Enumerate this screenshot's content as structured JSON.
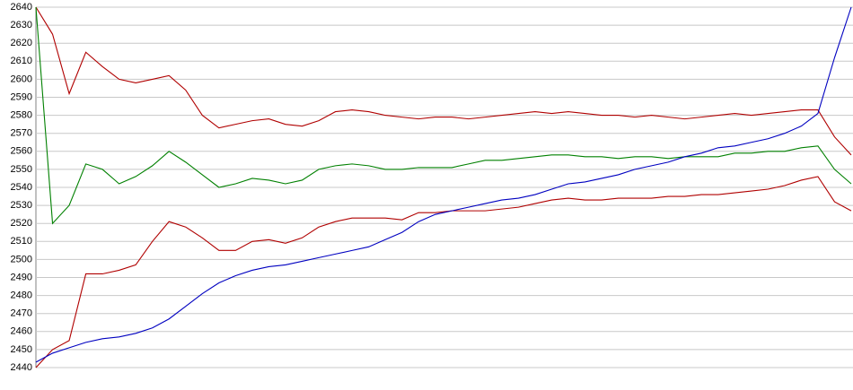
{
  "chart_data": {
    "type": "line",
    "series": [
      {
        "color": "#b00000",
        "values": [
          2640,
          2625,
          2592,
          2615,
          2607,
          2600,
          2598,
          2600,
          2602,
          2594,
          2580,
          2573,
          2575,
          2577,
          2578,
          2575,
          2574,
          2577,
          2582,
          2583,
          2582,
          2580,
          2579,
          2578,
          2579,
          2579,
          2578,
          2579,
          2580,
          2581,
          2582,
          2581,
          2582,
          2581,
          2580,
          2580,
          2579,
          2580,
          2579,
          2578,
          2579,
          2580,
          2581,
          2580,
          2581,
          2582,
          2583,
          2583,
          2568,
          2558
        ]
      },
      {
        "color": "#008000",
        "values": [
          2640,
          2520,
          2530,
          2553,
          2550,
          2542,
          2546,
          2552,
          2560,
          2554,
          2547,
          2540,
          2542,
          2545,
          2544,
          2542,
          2544,
          2550,
          2552,
          2553,
          2552,
          2550,
          2550,
          2551,
          2551,
          2551,
          2553,
          2555,
          2555,
          2556,
          2557,
          2558,
          2558,
          2557,
          2557,
          2556,
          2557,
          2557,
          2556,
          2557,
          2557,
          2557,
          2559,
          2559,
          2560,
          2560,
          2562,
          2563,
          2550,
          2542
        ]
      },
      {
        "color": "#b00000",
        "values": [
          2440,
          2450,
          2455,
          2492,
          2492,
          2494,
          2497,
          2510,
          2521,
          2518,
          2512,
          2505,
          2505,
          2510,
          2511,
          2509,
          2512,
          2518,
          2521,
          2523,
          2523,
          2523,
          2522,
          2526,
          2526,
          2527,
          2527,
          2527,
          2528,
          2529,
          2531,
          2533,
          2534,
          2533,
          2533,
          2534,
          2534,
          2534,
          2535,
          2535,
          2536,
          2536,
          2537,
          2538,
          2539,
          2541,
          2544,
          2546,
          2532,
          2527
        ]
      },
      {
        "color": "#0000c0",
        "values": [
          2443,
          2448,
          2451,
          2454,
          2456,
          2457,
          2459,
          2462,
          2467,
          2474,
          2481,
          2487,
          2491,
          2494,
          2496,
          2497,
          2499,
          2501,
          2503,
          2505,
          2507,
          2511,
          2515,
          2521,
          2525,
          2527,
          2529,
          2531,
          2533,
          2534,
          2536,
          2539,
          2542,
          2543,
          2545,
          2547,
          2550,
          2552,
          2554,
          2557,
          2559,
          2562,
          2563,
          2565,
          2567,
          2570,
          2574,
          2581,
          2612,
          2640
        ]
      }
    ],
    "ylim": [
      2440,
      2640
    ],
    "yticks": [
      2440,
      2450,
      2460,
      2470,
      2480,
      2490,
      2500,
      2510,
      2520,
      2530,
      2540,
      2550,
      2560,
      2570,
      2580,
      2590,
      2600,
      2610,
      2620,
      2630,
      2640
    ],
    "grid": true
  }
}
